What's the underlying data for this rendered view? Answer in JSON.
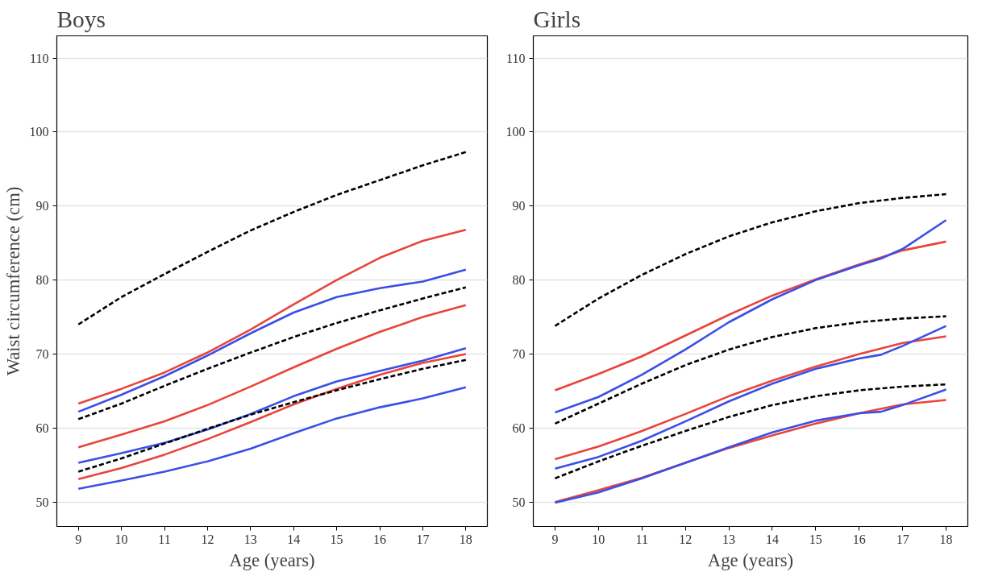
{
  "chart_data": [
    {
      "type": "line",
      "title": "Boys",
      "xlabel": "Age (years)",
      "ylabel": "Waist circumference (cm)",
      "x": [
        9,
        10,
        11,
        12,
        13,
        14,
        15,
        16,
        17,
        18
      ],
      "xlim": [
        8.5,
        18.5
      ],
      "ylim": [
        46.7,
        113
      ],
      "xticks": [
        9,
        10,
        11,
        12,
        13,
        14,
        15,
        16,
        17,
        18
      ],
      "yticks": [
        50,
        60,
        70,
        80,
        90,
        100,
        110
      ],
      "grid": "y",
      "series": [
        {
          "color": "#000000",
          "line_style": "dashed",
          "values": [
            74,
            77.7,
            80.8,
            83.8,
            86.7,
            89.2,
            91.5,
            93.5,
            95.5,
            97.3
          ]
        },
        {
          "color": "#e8453c",
          "line_style": "solid",
          "values": [
            63.3,
            65.3,
            67.5,
            70.2,
            73.3,
            76.7,
            80.0,
            83,
            85.3,
            86.8
          ]
        },
        {
          "color": "#3b4fe6",
          "line_style": "solid",
          "values": [
            62.2,
            64.5,
            67,
            69.8,
            72.8,
            75.6,
            77.7,
            78.9,
            79.8,
            81.4
          ]
        },
        {
          "color": "#000000",
          "line_style": "dashed",
          "values": [
            61.2,
            63.3,
            65.7,
            68,
            70.2,
            72.3,
            74.2,
            75.9,
            77.5,
            79
          ]
        },
        {
          "color": "#e8453c",
          "line_style": "solid",
          "values": [
            57.4,
            59.1,
            60.9,
            63.1,
            65.6,
            68.2,
            70.7,
            73,
            75,
            76.6
          ]
        },
        {
          "color": "#3b4fe6",
          "line_style": "solid",
          "values": [
            55.3,
            56.6,
            58,
            59.8,
            61.9,
            64.3,
            66.3,
            67.7,
            69.1,
            70.8
          ]
        },
        {
          "color": "#e8453c",
          "line_style": "solid",
          "values": [
            53.1,
            54.6,
            56.4,
            58.5,
            60.8,
            63.2,
            65.3,
            67.2,
            68.8,
            70
          ]
        },
        {
          "color": "#000000",
          "line_style": "dashed",
          "values": [
            54.1,
            55.9,
            57.9,
            59.9,
            61.8,
            63.5,
            65.1,
            66.6,
            68,
            69.2
          ]
        },
        {
          "color": "#3b4fe6",
          "line_style": "solid",
          "values": [
            51.8,
            52.9,
            54.1,
            55.5,
            57.2,
            59.3,
            61.3,
            62.8,
            64,
            65.5
          ]
        }
      ]
    },
    {
      "type": "line",
      "title": "Girls",
      "xlabel": "Age (years)",
      "x": [
        9,
        10,
        11,
        12,
        13,
        14,
        15,
        16,
        17,
        18
      ],
      "xlim": [
        8.5,
        18.5
      ],
      "ylim": [
        46.7,
        113
      ],
      "xticks": [
        9,
        10,
        11,
        12,
        13,
        14,
        15,
        16,
        17,
        18
      ],
      "yticks": [
        50,
        60,
        70,
        80,
        90,
        100,
        110
      ],
      "grid": "y",
      "series": [
        {
          "color": "#000000",
          "line_style": "dashed",
          "values": [
            73.8,
            77.5,
            80.7,
            83.5,
            85.9,
            87.8,
            89.3,
            90.4,
            91.1,
            91.6
          ]
        },
        {
          "color": "#e8453c",
          "line_style": "solid",
          "values": [
            65.1,
            67.3,
            69.7,
            72.5,
            75.3,
            77.9,
            80.1,
            82.1,
            84,
            85.2
          ]
        },
        {
          "color": "#3b4fe6",
          "line_style": "solid",
          "x": [
            9,
            10,
            11,
            12,
            13,
            14,
            15,
            16,
            16.5,
            17,
            18
          ],
          "values": [
            62.1,
            64.2,
            67.2,
            70.6,
            74.3,
            77.4,
            80,
            82,
            82.9,
            84.2,
            88.1
          ]
        },
        {
          "color": "#000000",
          "line_style": "dashed",
          "values": [
            60.6,
            63.3,
            66,
            68.5,
            70.6,
            72.3,
            73.5,
            74.3,
            74.8,
            75.1
          ]
        },
        {
          "color": "#e8453c",
          "line_style": "solid",
          "values": [
            55.8,
            57.5,
            59.6,
            61.9,
            64.3,
            66.4,
            68.3,
            70,
            71.5,
            72.4
          ]
        },
        {
          "color": "#3b4fe6",
          "line_style": "solid",
          "x": [
            9,
            10,
            11,
            12,
            13,
            14,
            15,
            16,
            16.5,
            17,
            18
          ],
          "values": [
            54.5,
            56.1,
            58.3,
            60.9,
            63.6,
            66,
            68,
            69.4,
            69.9,
            71.1,
            73.8
          ]
        },
        {
          "color": "#000000",
          "line_style": "dashed",
          "values": [
            53.2,
            55.5,
            57.6,
            59.6,
            61.5,
            63.1,
            64.3,
            65.1,
            65.6,
            65.9
          ]
        },
        {
          "color": "#e8453c",
          "line_style": "solid",
          "values": [
            50,
            51.6,
            53.3,
            55.3,
            57.3,
            59,
            60.6,
            62,
            63.2,
            63.8
          ]
        },
        {
          "color": "#3b4fe6",
          "line_style": "solid",
          "x": [
            9,
            10,
            11,
            12,
            13,
            14,
            15,
            16,
            16.5,
            17,
            18
          ],
          "values": [
            49.9,
            51.3,
            53.2,
            55.3,
            57.4,
            59.4,
            61,
            62,
            62.2,
            63.1,
            65.2
          ]
        }
      ]
    }
  ]
}
